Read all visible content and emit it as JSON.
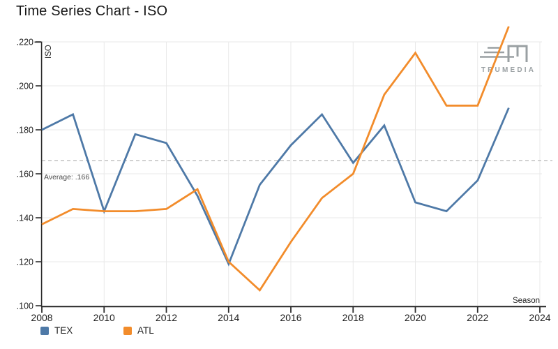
{
  "title": "Time Series Chart - ISO",
  "watermark": "TRUMEDIA",
  "colors": {
    "tex": "#4e79a7",
    "atl": "#f28c2b",
    "grid": "#e9e9e9",
    "axis": "#2e2e2e",
    "average_line": "#bcbcbc",
    "tick_text": "#1d1d1d"
  },
  "chart_data": {
    "type": "line",
    "title": "Time Series Chart - ISO",
    "xlabel": "Season",
    "ylabel": "ISO",
    "x": [
      2008,
      2009,
      2010,
      2011,
      2012,
      2013,
      2014,
      2015,
      2016,
      2017,
      2018,
      2019,
      2020,
      2021,
      2022,
      2023
    ],
    "series": [
      {
        "name": "TEX",
        "color": "#4e79a7",
        "values": [
          0.18,
          0.187,
          0.143,
          0.178,
          0.174,
          0.15,
          0.119,
          0.155,
          0.173,
          0.187,
          0.165,
          0.182,
          0.147,
          0.143,
          0.157,
          0.19
        ]
      },
      {
        "name": "ATL",
        "color": "#f28c2b",
        "values": [
          0.137,
          0.144,
          0.143,
          0.143,
          0.144,
          0.153,
          0.12,
          0.107,
          0.129,
          0.149,
          0.16,
          0.196,
          0.215,
          0.191,
          0.191,
          0.227
        ]
      }
    ],
    "xlim": [
      2008,
      2024
    ],
    "ylim": [
      0.1,
      0.22
    ],
    "x_ticks": [
      {
        "value": 2008,
        "label": "2008"
      },
      {
        "value": 2010,
        "label": "2010"
      },
      {
        "value": 2012,
        "label": "2012"
      },
      {
        "value": 2014,
        "label": "2014"
      },
      {
        "value": 2016,
        "label": "2016"
      },
      {
        "value": 2018,
        "label": "2018"
      },
      {
        "value": 2020,
        "label": "2020"
      },
      {
        "value": 2022,
        "label": "2022"
      },
      {
        "value": 2024,
        "label": "2024"
      }
    ],
    "y_ticks": [
      {
        "value": 0.1,
        "label": ".100"
      },
      {
        "value": 0.12,
        "label": ".120"
      },
      {
        "value": 0.14,
        "label": ".140"
      },
      {
        "value": 0.16,
        "label": ".160"
      },
      {
        "value": 0.18,
        "label": ".180"
      },
      {
        "value": 0.2,
        "label": ".200"
      },
      {
        "value": 0.22,
        "label": ".220"
      }
    ],
    "average": {
      "value": 0.166,
      "label": "Average: .166"
    },
    "grid": true,
    "legend_position": "bottom-left"
  }
}
